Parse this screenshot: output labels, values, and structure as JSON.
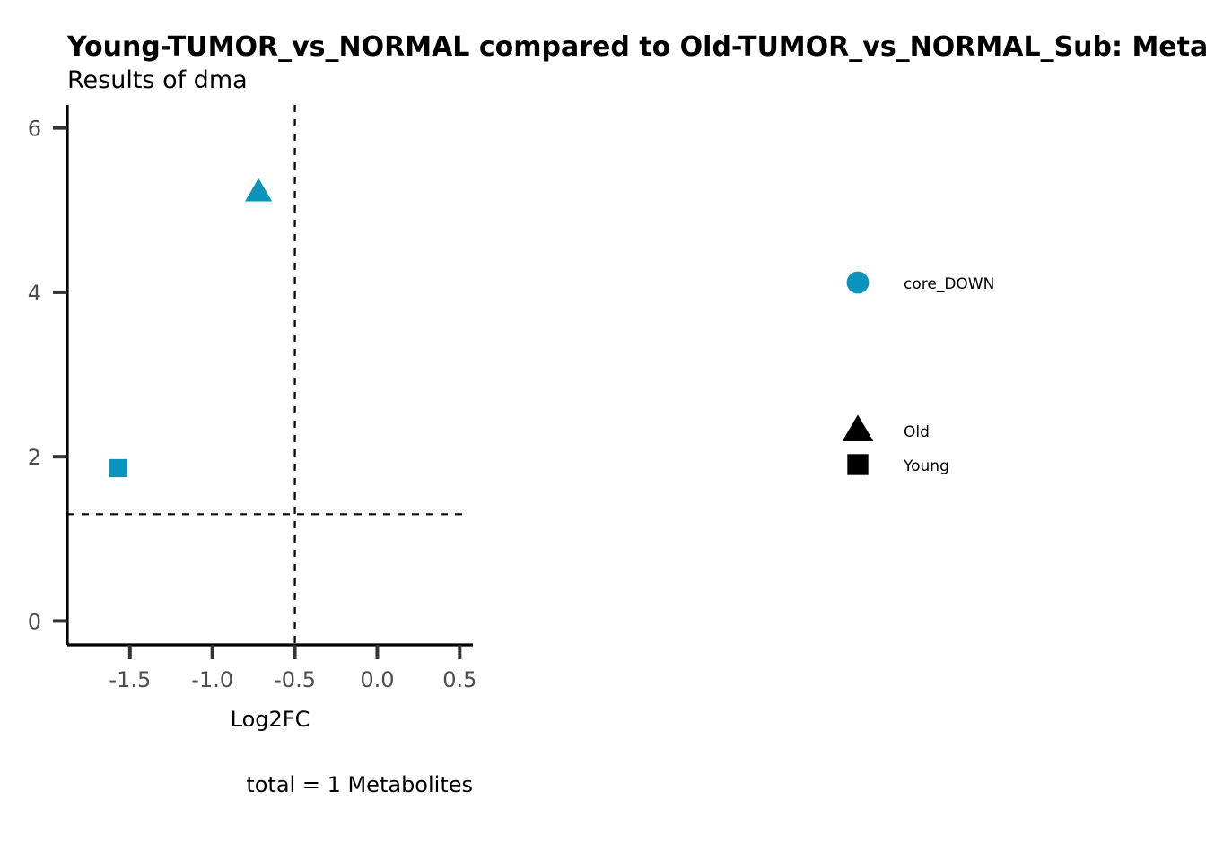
{
  "chart_data": {
    "type": "scatter",
    "title": "Young-TUMOR_vs_NORMAL compared to Old-TUMOR_vs_NORMAL_Sub: Metabolites",
    "subtitle": "Results of dma",
    "xlabel": "Log2FC",
    "ylabel": "",
    "caption": "total = 1 Metabolites",
    "xlim": [
      -1.88,
      0.58
    ],
    "ylim": [
      -0.29,
      6.28
    ],
    "x_ticks": [
      -1.5,
      -1.0,
      -0.5,
      0.0,
      0.5
    ],
    "x_tick_labels": [
      "-1.5",
      "-1.0",
      "-0.5",
      "0.0",
      "0.5"
    ],
    "y_ticks": [
      0,
      2,
      4,
      6
    ],
    "y_tick_labels": [
      "0",
      "2",
      "4",
      "6"
    ],
    "grid": false,
    "reference_lines": {
      "vertical_x": -0.5,
      "horizontal_y": 1.3
    },
    "point_color": "#0A93BB",
    "points": [
      {
        "x": -0.72,
        "y": 5.22,
        "shape": "triangle",
        "group": "Old",
        "color_group": "core_DOWN"
      },
      {
        "x": -1.57,
        "y": 1.86,
        "shape": "square",
        "group": "Young",
        "color_group": "core_DOWN"
      }
    ],
    "legend": {
      "placement": "right",
      "color_entries": [
        {
          "label": "core_DOWN",
          "color": "#0A93BB",
          "shape": "circle"
        }
      ],
      "shape_entries": [
        {
          "label": "Old",
          "shape": "triangle"
        },
        {
          "label": "Young",
          "shape": "square"
        }
      ]
    }
  }
}
